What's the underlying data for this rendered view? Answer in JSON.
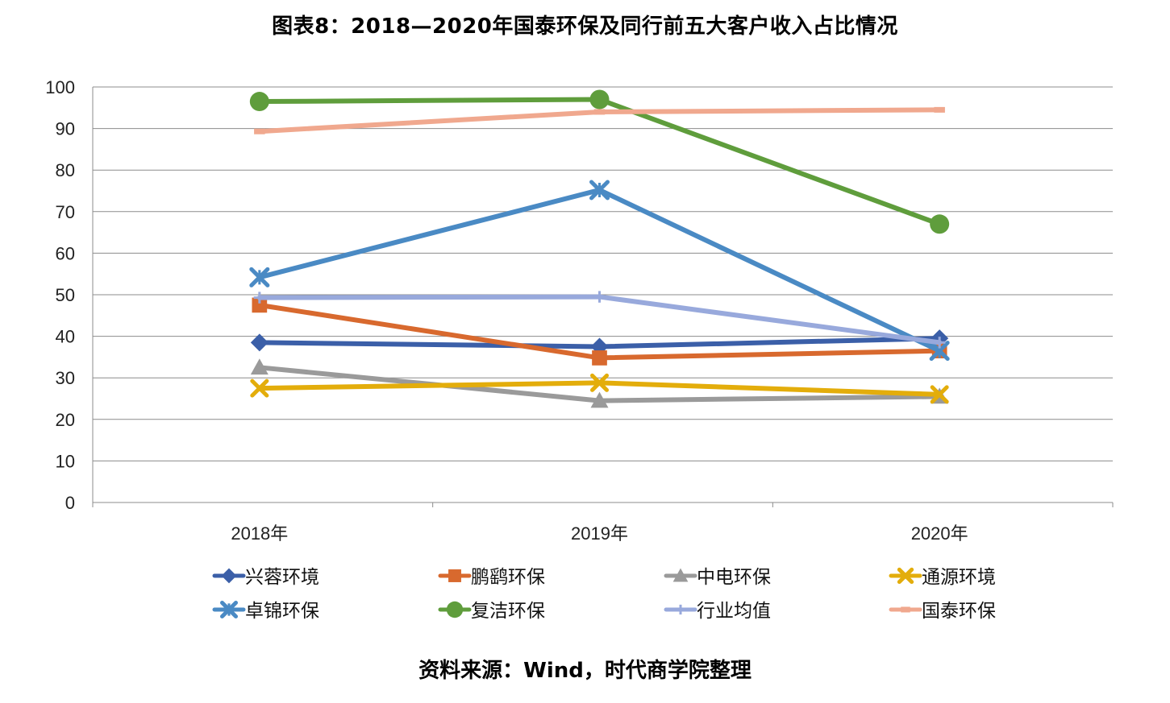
{
  "title": "图表8：2018—2020年国泰环保及同行前五大客户收入占比情况",
  "source": "资料来源：Wind，时代商学院整理",
  "chart_data": {
    "type": "line",
    "title": "图表8：2018—2020年国泰环保及同行前五大客户收入占比情况",
    "categories": [
      "2018年",
      "2019年",
      "2020年"
    ],
    "ylim": [
      0,
      100
    ],
    "yticks": [
      0,
      10,
      20,
      30,
      40,
      50,
      60,
      70,
      80,
      90,
      100
    ],
    "grid": true,
    "legend_position": "bottom",
    "series": [
      {
        "name": "兴蓉环境",
        "values": [
          38.5,
          37.5,
          39.5
        ],
        "color": "#3b5fa8",
        "marker": "diamond"
      },
      {
        "name": "鹏鹞环保",
        "values": [
          47.5,
          34.8,
          36.5
        ],
        "color": "#d8692e",
        "marker": "square"
      },
      {
        "name": "中电环保",
        "values": [
          32.5,
          24.5,
          25.5
        ],
        "color": "#9a9a9a",
        "marker": "triangle"
      },
      {
        "name": "通源环境",
        "values": [
          27.5,
          28.8,
          26.0
        ],
        "color": "#e3ad0b",
        "marker": "x"
      },
      {
        "name": "卓锦环保",
        "values": [
          54.2,
          75.2,
          36.5
        ],
        "color": "#4a8ac4",
        "marker": "star"
      },
      {
        "name": "复洁环保",
        "values": [
          96.5,
          97.0,
          67.0
        ],
        "color": "#5f9d3c",
        "marker": "circle"
      },
      {
        "name": "行业均值",
        "values": [
          49.3,
          49.5,
          38.5
        ],
        "color": "#98a9dc",
        "marker": "plus"
      },
      {
        "name": "国泰环保",
        "values": [
          89.3,
          94.0,
          94.5
        ],
        "color": "#f0a88e",
        "marker": "dash"
      }
    ]
  }
}
